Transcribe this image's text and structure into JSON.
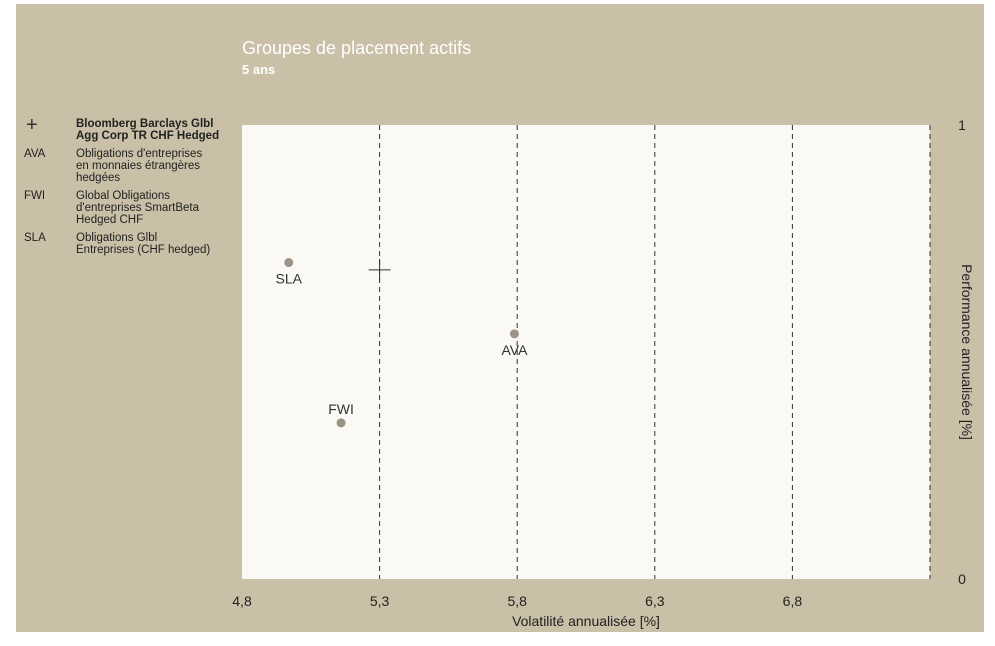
{
  "chart_data": {
    "type": "scatter",
    "title": "Groupes de placement actifs",
    "subtitle": "5 ans",
    "xlabel": "Volatilité annualisée [%]",
    "ylabel": "Performance annualisée [%]",
    "xlim": [
      4.8,
      7.3
    ],
    "ylim": [
      0,
      1
    ],
    "x_ticks": [
      "4,8",
      "5,3",
      "5,8",
      "6,3",
      "6,8"
    ],
    "x_tick_values": [
      4.8,
      5.3,
      5.8,
      6.3,
      6.8
    ],
    "y_ticks": [
      "0",
      "1"
    ],
    "y_tick_values": [
      0,
      1
    ],
    "grid": "vertical dashed",
    "legend_placement": "left",
    "points": [
      {
        "label": "SLA",
        "x": 4.97,
        "y": 0.697,
        "marker": "dot",
        "label_pos": "below"
      },
      {
        "label": "AVA",
        "x": 5.79,
        "y": 0.54,
        "marker": "dot",
        "label_pos": "below"
      },
      {
        "label": "FWI",
        "x": 5.16,
        "y": 0.344,
        "marker": "dot",
        "label_pos": "above"
      },
      {
        "label": "",
        "x": 5.3,
        "y": 0.681,
        "marker": "plus",
        "label_pos": "none"
      }
    ],
    "colors": {
      "background": "#cabfa7",
      "plot_area": "#fbf9f5",
      "marker": "#9b9383",
      "benchmark": "#333333",
      "title": "#ffffff"
    }
  },
  "legend": [
    {
      "key": "+",
      "text": "Bloomberg Barclays Glbl\nAgg Corp TR CHF Hedged",
      "bold": true
    },
    {
      "key": "AVA",
      "text": "Obligations d'entreprises\nen monnaies étrangères\nhedgées",
      "bold": false
    },
    {
      "key": "FWI",
      "text": "Global Obligations\nd'entreprises SmartBeta\nHedged CHF",
      "bold": false
    },
    {
      "key": "SLA",
      "text": "Obligations Glbl\nEntreprises (CHF hedged)",
      "bold": false
    }
  ]
}
